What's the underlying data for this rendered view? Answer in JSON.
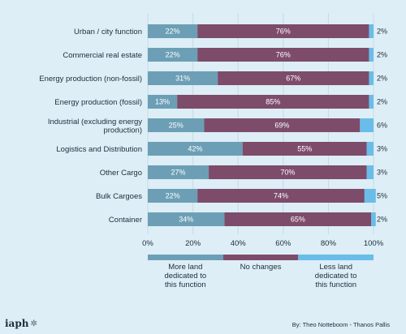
{
  "chart_data": {
    "type": "bar",
    "orientation": "horizontal",
    "stacked": true,
    "categories": [
      "Urban / city function",
      "Commercial real estate",
      "Energy production (non-fossil)",
      "Energy production (fossil)",
      "Industrial (excluding energy production)",
      "Logistics and Distribution",
      "Other Cargo",
      "Bulk Cargoes",
      "Container"
    ],
    "category_label_lines": [
      [
        "Urban / city function"
      ],
      [
        "Commercial real estate"
      ],
      [
        "Energy production (non-fossil)"
      ],
      [
        "Energy production (fossil)"
      ],
      [
        "Industrial (excluding energy",
        "production)"
      ],
      [
        "Logistics and Distribution"
      ],
      [
        "Other Cargo"
      ],
      [
        "Bulk Cargoes"
      ],
      [
        "Container"
      ]
    ],
    "series": [
      {
        "name": "More land dedicated to this function",
        "color": "#6c9fb5",
        "values": [
          22,
          22,
          31,
          13,
          25,
          42,
          27,
          22,
          34
        ]
      },
      {
        "name": "No changes",
        "color": "#7d4c6b",
        "values": [
          76,
          76,
          67,
          85,
          69,
          55,
          70,
          74,
          65
        ]
      },
      {
        "name": "Less land dedicated to this function",
        "color": "#69bde8",
        "values": [
          2,
          2,
          2,
          2,
          6,
          3,
          3,
          5,
          2
        ]
      }
    ],
    "xlim": [
      0,
      100
    ],
    "xticks": [
      "0%",
      "20%",
      "40%",
      "60%",
      "80%",
      "100%"
    ],
    "gridlines": "vertical",
    "legend_position": "bottom"
  },
  "legend": {
    "items": [
      {
        "label": "More land\ndedicated to\nthis function",
        "color": "#6c9fb5"
      },
      {
        "label": "No changes",
        "color": "#7d4c6b"
      },
      {
        "label": "Less land\ndedicated to\nthis function",
        "color": "#69bde8"
      }
    ]
  },
  "footer": {
    "logo_text": "iaph",
    "logo_icon": "gear-icon",
    "credit": "By: Theo Notteboom - Thanos Pallis"
  }
}
